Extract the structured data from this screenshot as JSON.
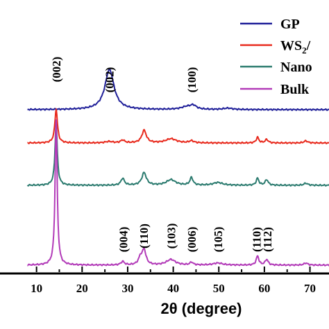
{
  "chart_data": {
    "type": "line",
    "xlabel": "2θ (degree)",
    "xlim": [
      8,
      75
    ],
    "ylabel": "",
    "yticks": "none",
    "grid": false,
    "xticks": [
      "10",
      "20",
      "30",
      "40",
      "50",
      "60",
      "70"
    ],
    "legend": {
      "placement": "top-right",
      "entries": [
        {
          "name": "GP",
          "color": "#1f1f99"
        },
        {
          "name": "WS2/",
          "color": "#e8291c"
        },
        {
          "name": "Nano",
          "color": "#2a7a6e"
        },
        {
          "name": "Bulk",
          "color": "#b23ab8"
        }
      ]
    },
    "series": [
      {
        "name": "GP",
        "color": "#1f1f99",
        "peaks": [
          {
            "x": 26.0,
            "y": 58,
            "w": 1.2
          },
          {
            "x": 43.0,
            "y": 4,
            "w": 1.5
          },
          {
            "x": 44.4,
            "y": 5,
            "w": 0.8
          },
          {
            "x": 52.0,
            "y": 2,
            "w": 1.2
          }
        ],
        "peak_labels": [
          {
            "x": 26.0,
            "text": "(002)"
          },
          {
            "x": 44.0,
            "text": "(100)"
          }
        ]
      },
      {
        "name": "WS2/",
        "color": "#e8291c",
        "peaks": [
          {
            "x": 14.3,
            "y": 48,
            "w": 0.35
          },
          {
            "x": 25.9,
            "y": 2,
            "w": 1
          },
          {
            "x": 28.9,
            "y": 4,
            "w": 0.5
          },
          {
            "x": 33.6,
            "y": 18,
            "w": 0.6
          },
          {
            "x": 39.5,
            "y": 6,
            "w": 1.4
          },
          {
            "x": 44.0,
            "y": 3,
            "w": 0.6
          },
          {
            "x": 58.5,
            "y": 8,
            "w": 0.35
          },
          {
            "x": 60.5,
            "y": 5,
            "w": 0.4
          },
          {
            "x": 69.1,
            "y": 3,
            "w": 0.5
          }
        ],
        "peak_labels": [
          {
            "x": 14.3,
            "text": "(002)"
          }
        ]
      },
      {
        "name": "Nano",
        "color": "#2a7a6e",
        "peaks": [
          {
            "x": 14.3,
            "y": 90,
            "w": 0.3
          },
          {
            "x": 28.9,
            "y": 10,
            "w": 0.45
          },
          {
            "x": 33.6,
            "y": 18,
            "w": 0.6
          },
          {
            "x": 39.5,
            "y": 8,
            "w": 1.2
          },
          {
            "x": 44.0,
            "y": 11,
            "w": 0.4
          },
          {
            "x": 49.8,
            "y": 4,
            "w": 1.2
          },
          {
            "x": 58.5,
            "y": 10,
            "w": 0.35
          },
          {
            "x": 60.5,
            "y": 8,
            "w": 0.4
          },
          {
            "x": 69.1,
            "y": 3,
            "w": 0.5
          }
        ],
        "peak_labels": []
      },
      {
        "name": "Bulk",
        "color": "#b23ab8",
        "peaks": [
          {
            "x": 14.3,
            "y": 210,
            "w": 0.28
          },
          {
            "x": 28.9,
            "y": 5,
            "w": 0.45
          },
          {
            "x": 32.8,
            "y": 10,
            "w": 0.5
          },
          {
            "x": 33.6,
            "y": 21,
            "w": 0.5
          },
          {
            "x": 39.5,
            "y": 8,
            "w": 1.2
          },
          {
            "x": 44.0,
            "y": 4,
            "w": 0.4
          },
          {
            "x": 49.8,
            "y": 3,
            "w": 1.2
          },
          {
            "x": 58.5,
            "y": 13,
            "w": 0.35
          },
          {
            "x": 60.5,
            "y": 8,
            "w": 0.4
          },
          {
            "x": 69.1,
            "y": 3,
            "w": 0.5
          }
        ],
        "peak_labels": [
          {
            "x": 29.0,
            "text": "(004)"
          },
          {
            "x": 33.5,
            "text": "(110)"
          },
          {
            "x": 39.5,
            "text": "(103)"
          },
          {
            "x": 44.0,
            "text": "(006)"
          },
          {
            "x": 49.8,
            "text": "(105)"
          },
          {
            "x": 58.3,
            "text": "(110)"
          },
          {
            "x": 60.6,
            "text": "(112)"
          }
        ]
      }
    ]
  }
}
